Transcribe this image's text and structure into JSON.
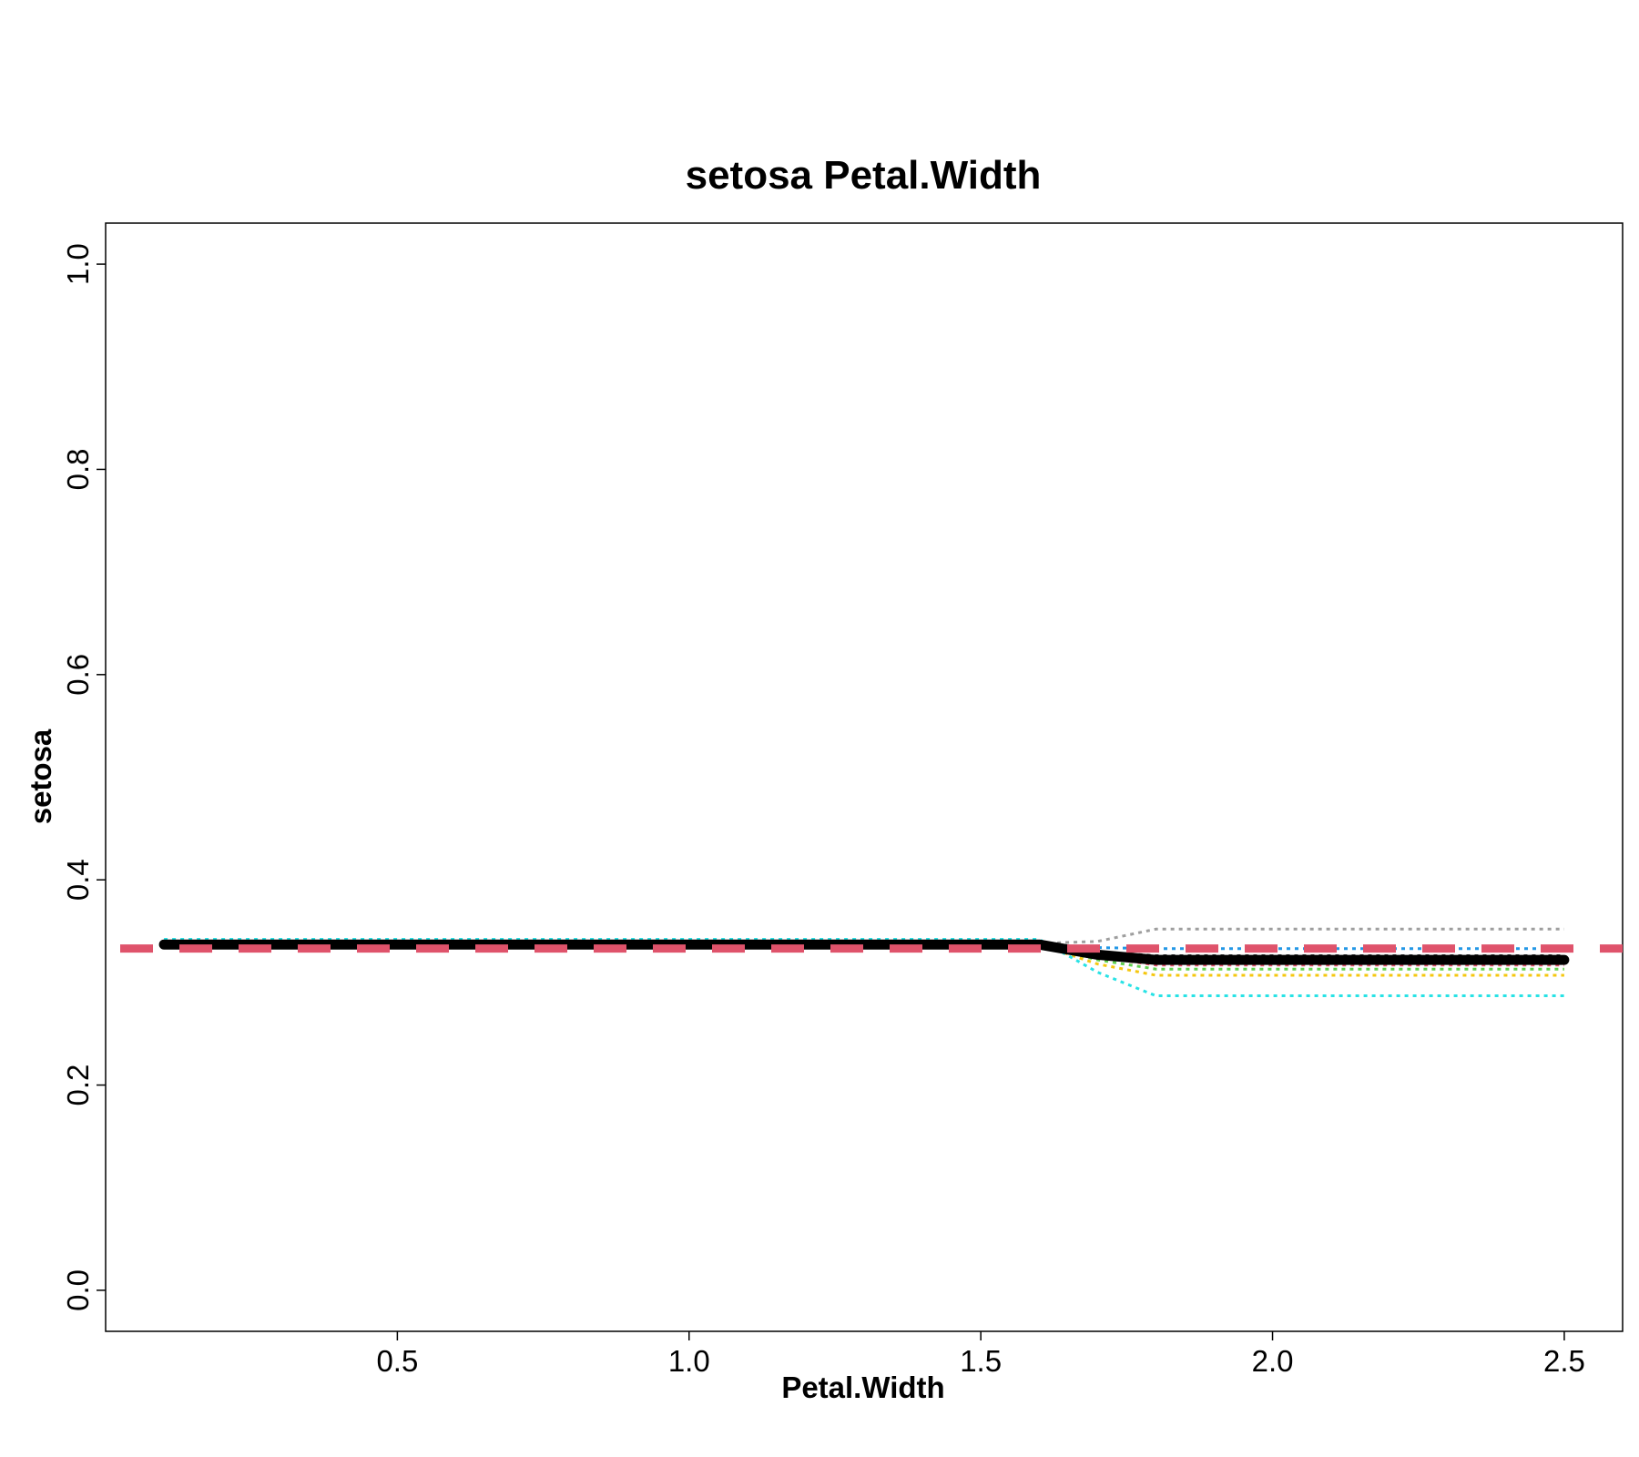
{
  "chart_data": {
    "type": "line",
    "title": "setosa  Petal.Width",
    "xlabel": "Petal.Width",
    "ylabel": "setosa",
    "xlim": [
      0.0,
      2.6
    ],
    "ylim": [
      -0.04,
      1.04
    ],
    "x_ticks": [
      0.5,
      1.0,
      1.5,
      2.0,
      2.5
    ],
    "x_tick_labels": [
      "0.5",
      "1.0",
      "1.5",
      "2.0",
      "2.5"
    ],
    "y_ticks": [
      0.0,
      0.2,
      0.4,
      0.6,
      0.8,
      1.0
    ],
    "y_tick_labels": [
      "0.0",
      "0.2",
      "0.4",
      "0.6",
      "0.8",
      "1.0"
    ],
    "grid": false,
    "reference_line": {
      "y": 0.333,
      "color": "#DF536B",
      "style": "dashed"
    },
    "main_series": {
      "color": "#000000",
      "x": [
        0.1,
        1.6,
        1.7,
        1.8,
        2.5
      ],
      "y": [
        0.337,
        0.337,
        0.327,
        0.322,
        0.322
      ]
    },
    "individual_series": [
      {
        "color": "#9E9E9E",
        "x": [
          0.1,
          1.6,
          1.7,
          1.8,
          2.5
        ],
        "y": [
          0.338,
          0.338,
          0.34,
          0.352,
          0.352
        ]
      },
      {
        "color": "#2297E6",
        "x": [
          0.1,
          1.6,
          1.7,
          1.8,
          2.5
        ],
        "y": [
          0.337,
          0.337,
          0.334,
          0.333,
          0.333
        ]
      },
      {
        "color": "#000000",
        "x": [
          0.1,
          1.6,
          1.7,
          1.8,
          2.5
        ],
        "y": [
          0.337,
          0.337,
          0.33,
          0.326,
          0.326
        ]
      },
      {
        "color": "#DF536B",
        "x": [
          0.1,
          1.6,
          1.7,
          1.8,
          2.5
        ],
        "y": [
          0.336,
          0.336,
          0.325,
          0.317,
          0.317
        ]
      },
      {
        "color": "#61D04F",
        "x": [
          0.1,
          1.6,
          1.7,
          1.8,
          2.5
        ],
        "y": [
          0.336,
          0.336,
          0.322,
          0.313,
          0.313
        ]
      },
      {
        "color": "#F5C710",
        "x": [
          0.1,
          1.6,
          1.7,
          1.8,
          2.5
        ],
        "y": [
          0.337,
          0.337,
          0.318,
          0.307,
          0.307
        ]
      },
      {
        "color": "#28E2E5",
        "x": [
          0.1,
          1.6,
          1.7,
          1.8,
          2.5
        ],
        "y": [
          0.342,
          0.342,
          0.31,
          0.287,
          0.287
        ]
      }
    ]
  }
}
